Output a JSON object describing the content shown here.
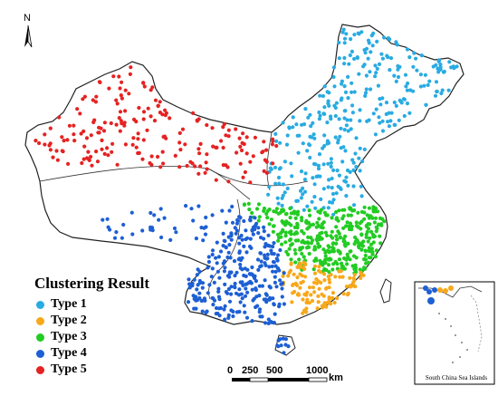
{
  "north_arrow": {
    "label": "N",
    "icon": "north-arrow-icon"
  },
  "legend": {
    "title": "Clustering Result",
    "items": [
      {
        "label": "Type 1",
        "color": "#29abe2"
      },
      {
        "label": "Type 2",
        "color": "#f7a81b"
      },
      {
        "label": "Type 3",
        "color": "#22cc22"
      },
      {
        "label": "Type 4",
        "color": "#1d5fd4"
      },
      {
        "label": "Type 5",
        "color": "#e52222"
      }
    ]
  },
  "scale_bar": {
    "ticks": [
      "0",
      "250",
      "500",
      "1000"
    ],
    "unit": "km"
  },
  "inset": {
    "label": "South China Sea Islands"
  }
}
